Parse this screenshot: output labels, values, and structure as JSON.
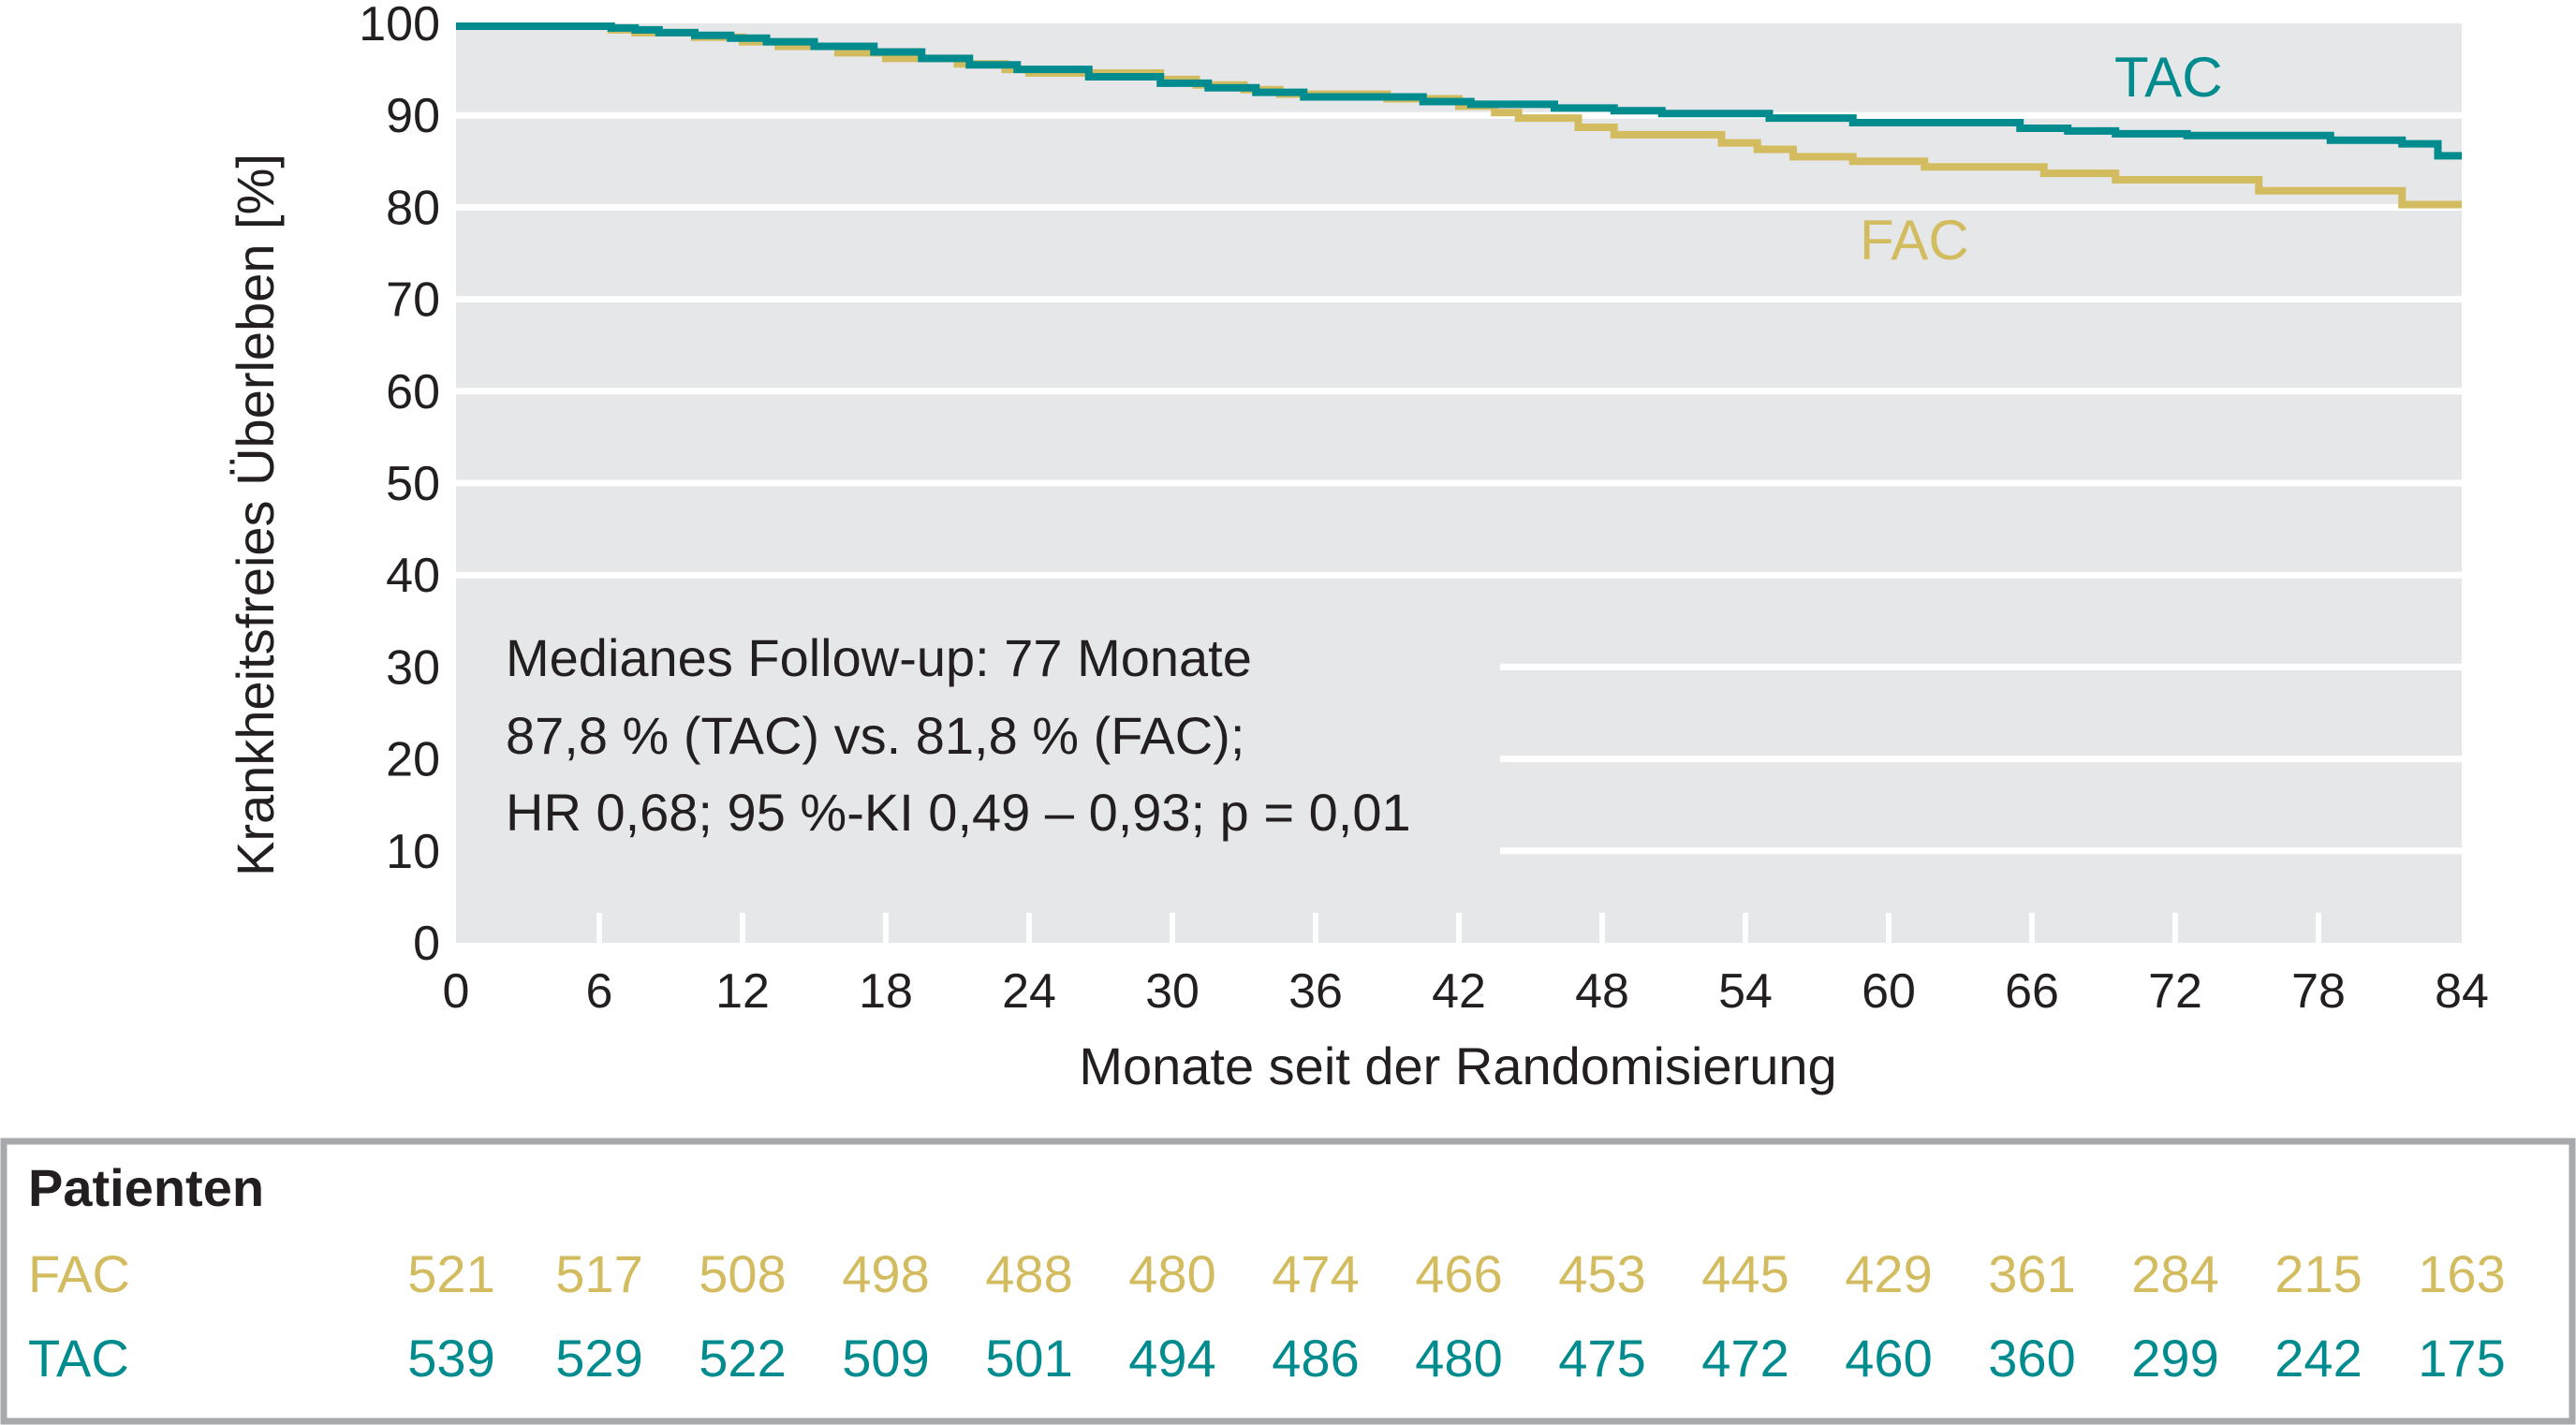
{
  "colors": {
    "TAC": "#008b8e",
    "FAC": "#d3bc5f",
    "plot_bg": "#e6e7e8",
    "gridline": "#ffffff",
    "risk_border": "#a7a9ac"
  },
  "chart_data": {
    "type": "line",
    "step": true,
    "xlabel": "Monate seit der Randomisierung",
    "ylabel": "Krankheitsfreies Überleben [%]",
    "xlim": [
      0,
      84
    ],
    "ylim": [
      0,
      100
    ],
    "xticks": [
      0,
      6,
      12,
      18,
      24,
      30,
      36,
      42,
      48,
      54,
      60,
      66,
      72,
      78,
      84
    ],
    "yticks": [
      0,
      10,
      20,
      30,
      40,
      50,
      60,
      70,
      80,
      90,
      100
    ],
    "grid": true,
    "series": [
      {
        "name": "TAC",
        "x": [
          0,
          6.5,
          7.5,
          8.5,
          10,
          11.5,
          13,
          15,
          17.5,
          19.5,
          21.5,
          23.5,
          26.5,
          29.5,
          31.5,
          33.5,
          35.5,
          40.5,
          42.5,
          46,
          48.5,
          50.5,
          55,
          58.5,
          65.5,
          67.5,
          69.5,
          72.5,
          78.5,
          81.5,
          83,
          84
        ],
        "y": [
          99.7,
          99.5,
          99.3,
          99.0,
          98.7,
          98.4,
          98.0,
          97.5,
          96.9,
          96.2,
          95.5,
          95.0,
          94.2,
          93.5,
          93.0,
          92.5,
          92.0,
          91.5,
          91.2,
          90.8,
          90.5,
          90.2,
          89.7,
          89.2,
          88.6,
          88.3,
          88.0,
          87.8,
          87.3,
          86.9,
          85.6,
          85.6
        ]
      },
      {
        "name": "FAC",
        "x": [
          0,
          6.5,
          7.5,
          10,
          12,
          13.5,
          16,
          18,
          21,
          23,
          24,
          29.5,
          31,
          33,
          34.5,
          39,
          42,
          43.5,
          44.5,
          47,
          48.5,
          53,
          54.5,
          56,
          58.5,
          61.5,
          66.5,
          69.5,
          75.5,
          81.5,
          84
        ],
        "y": [
          99.7,
          99.3,
          99.0,
          98.5,
          98.0,
          97.5,
          96.8,
          96.2,
          95.6,
          95.0,
          94.6,
          93.9,
          93.3,
          92.8,
          92.3,
          91.8,
          91.0,
          90.3,
          89.7,
          88.7,
          87.9,
          87.0,
          86.3,
          85.5,
          85.0,
          84.4,
          83.7,
          83.0,
          81.8,
          80.3,
          80.3
        ]
      }
    ],
    "series_labels": {
      "TAC": "TAC",
      "FAC": "FAC"
    },
    "annotation": [
      "Medianes Follow-up: 77 Monate",
      "87,8 % (TAC) vs. 81,8 % (FAC);",
      "HR 0,68; 95 %-KI 0,49 – 0,93; p = 0,01"
    ],
    "risk_table": {
      "title": "Patienten",
      "rows": [
        {
          "label": "FAC",
          "values": [
            521,
            517,
            508,
            498,
            488,
            480,
            474,
            466,
            453,
            445,
            429,
            361,
            284,
            215,
            163
          ]
        },
        {
          "label": "TAC",
          "values": [
            539,
            529,
            522,
            509,
            501,
            494,
            486,
            480,
            475,
            472,
            460,
            360,
            299,
            242,
            175
          ]
        }
      ]
    }
  }
}
